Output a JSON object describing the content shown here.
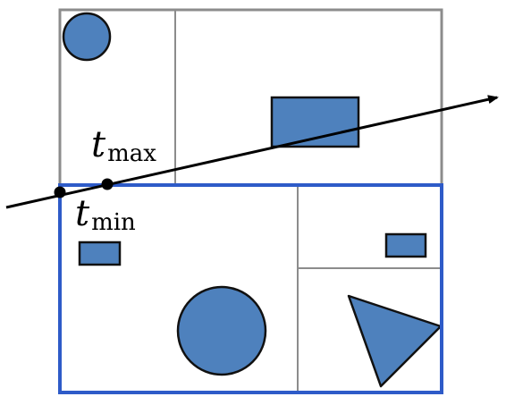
{
  "labels": {
    "t_max": {
      "var": "t",
      "sub": "max"
    },
    "t_min": {
      "var": "t",
      "sub": "min"
    }
  },
  "colors": {
    "shape_fill": "#4e81bd",
    "shape_stroke": "#111111",
    "grid_line": "#8c8c8c",
    "highlight_box": "#2e5bc8",
    "ray": "#000000",
    "point": "#000000"
  }
}
